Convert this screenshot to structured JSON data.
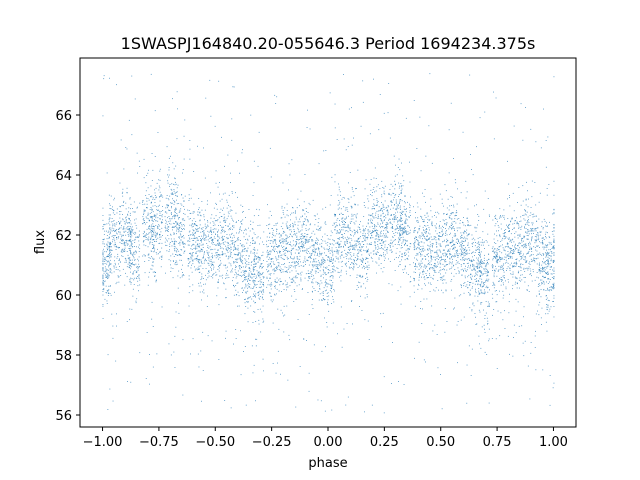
{
  "chart_data": {
    "type": "scatter",
    "title": "1SWASPJ164840.20-055646.3 Period 1694234.375s",
    "xlabel": "phase",
    "ylabel": "flux",
    "xlim": [
      -1.1,
      1.1
    ],
    "ylim": [
      55.6,
      67.9
    ],
    "xticks": [
      -1.0,
      -0.75,
      -0.5,
      -0.25,
      0.0,
      0.25,
      0.5,
      0.75,
      1.0
    ],
    "xtick_labels": [
      "−1.00",
      "−0.75",
      "−0.50",
      "−0.25",
      "0.00",
      "0.25",
      "0.50",
      "0.75",
      "1.00"
    ],
    "yticks": [
      56,
      58,
      60,
      62,
      64,
      66
    ],
    "ytick_labels": [
      "56",
      "58",
      "60",
      "62",
      "64",
      "66"
    ],
    "grid": false,
    "point_color": "#1f77b4",
    "series_summary": {
      "phase_range": [
        -1.0,
        1.0
      ],
      "flux_core_range": [
        60.0,
        63.0
      ],
      "flux_median": 61.6,
      "flux_extent": [
        56.0,
        67.4
      ],
      "clusters_phase": [
        -0.99,
        -0.95,
        -0.9,
        -0.86,
        -0.8,
        -0.76,
        -0.7,
        -0.66,
        -0.6,
        -0.55,
        -0.5,
        -0.45,
        -0.4,
        -0.35,
        -0.31,
        -0.25,
        -0.2,
        -0.15,
        -0.1,
        -0.05,
        0.0,
        0.05,
        0.1,
        0.15,
        0.2,
        0.25,
        0.3,
        0.34,
        0.4,
        0.45,
        0.5,
        0.55,
        0.6,
        0.65,
        0.69,
        0.75,
        0.8,
        0.85,
        0.9,
        0.95,
        0.99
      ],
      "clusters_center_flux": [
        61.0,
        62.0,
        62.0,
        61.5,
        62.2,
        62.3,
        62.6,
        62.2,
        61.7,
        61.5,
        61.6,
        61.8,
        61.4,
        61.0,
        60.6,
        61.3,
        61.6,
        61.5,
        61.7,
        61.2,
        61.0,
        62.0,
        62.0,
        61.5,
        62.2,
        62.3,
        62.6,
        62.2,
        61.7,
        61.5,
        61.6,
        61.8,
        61.4,
        61.0,
        60.6,
        61.3,
        61.6,
        61.5,
        61.7,
        61.2,
        61.0
      ]
    }
  }
}
